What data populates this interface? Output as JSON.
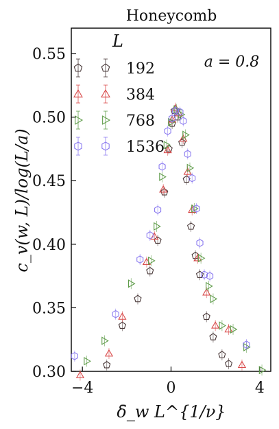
{
  "chart_data": {
    "type": "scatter",
    "title": "Honeycomb",
    "xlabel": "δ̄_w L^{1/ν}",
    "ylabel": "c_v(w, L)/log(L/a)",
    "xlim": [
      -4.5,
      4.5
    ],
    "ylim": [
      0.3,
      0.57
    ],
    "xticks": [
      -4,
      0,
      4
    ],
    "xtick_labels": [
      "−4",
      "0",
      "4"
    ],
    "yticks": [
      0.3,
      0.35,
      0.4,
      0.45,
      0.5,
      0.55
    ],
    "ytick_labels": [
      "0.30",
      "0.35",
      "0.40",
      "0.45",
      "0.50",
      "0.55"
    ],
    "legend_title": "L",
    "legend_position": "top-left",
    "annotation": "a = 0.8",
    "grid": false,
    "series": [
      {
        "name": "192",
        "color": "#4a3a3a",
        "marker": "pentagon",
        "points": [
          [
            -2.9,
            0.305
          ],
          [
            -2.2,
            0.336
          ],
          [
            -1.5,
            0.357
          ],
          [
            -0.95,
            0.379
          ],
          [
            -0.6,
            0.403
          ],
          [
            -0.3,
            0.441
          ],
          [
            -0.1,
            0.475
          ],
          [
            0.05,
            0.495
          ],
          [
            0.15,
            0.505
          ],
          [
            0.3,
            0.5
          ],
          [
            0.5,
            0.48
          ],
          [
            0.7,
            0.451
          ],
          [
            0.9,
            0.414
          ],
          [
            1.1,
            0.391
          ],
          [
            1.3,
            0.376
          ],
          [
            1.6,
            0.343
          ],
          [
            1.9,
            0.327
          ],
          [
            2.3,
            0.313
          ],
          [
            2.6,
            0.306
          ]
        ]
      },
      {
        "name": "384",
        "color": "#d94a4a",
        "marker": "triangle-up",
        "points": [
          [
            -4.1,
            0.297
          ],
          [
            -2.8,
            0.314
          ],
          [
            -2.2,
            0.343
          ],
          [
            -1.1,
            0.386
          ],
          [
            -0.75,
            0.406
          ],
          [
            -0.35,
            0.443
          ],
          [
            -0.15,
            0.474
          ],
          [
            0.05,
            0.498
          ],
          [
            0.2,
            0.507
          ],
          [
            0.35,
            0.503
          ],
          [
            0.55,
            0.483
          ],
          [
            0.75,
            0.457
          ],
          [
            0.95,
            0.427
          ],
          [
            1.2,
            0.389
          ],
          [
            1.6,
            0.362
          ],
          [
            2.0,
            0.336
          ],
          [
            2.6,
            0.333
          ],
          [
            3.2,
            0.305
          ]
        ]
      },
      {
        "name": "768",
        "color": "#5f9c4a",
        "marker": "triangle-right",
        "points": [
          [
            -3.8,
            0.308
          ],
          [
            -3.0,
            0.324
          ],
          [
            -1.8,
            0.369
          ],
          [
            -0.9,
            0.387
          ],
          [
            -0.65,
            0.414
          ],
          [
            -0.4,
            0.453
          ],
          [
            -0.2,
            0.478
          ],
          [
            0.0,
            0.496
          ],
          [
            0.25,
            0.506
          ],
          [
            0.45,
            0.502
          ],
          [
            0.65,
            0.486
          ],
          [
            0.85,
            0.46
          ],
          [
            1.05,
            0.428
          ],
          [
            1.35,
            0.389
          ],
          [
            1.7,
            0.367
          ],
          [
            1.9,
            0.357
          ],
          [
            2.3,
            0.336
          ],
          [
            2.8,
            0.333
          ],
          [
            3.4,
            0.319
          ],
          [
            4.1,
            0.301
          ]
        ]
      },
      {
        "name": "1536",
        "color": "#8c7cf0",
        "marker": "hexagon",
        "points": [
          [
            -4.35,
            0.312
          ],
          [
            -2.5,
            0.345
          ],
          [
            -1.4,
            0.388
          ],
          [
            -0.95,
            0.407
          ],
          [
            -0.6,
            0.427
          ],
          [
            -0.4,
            0.461
          ],
          [
            -0.15,
            0.489
          ],
          [
            0.05,
            0.499
          ],
          [
            0.2,
            0.505
          ],
          [
            0.4,
            0.504
          ],
          [
            0.55,
            0.497
          ],
          [
            0.75,
            0.471
          ],
          [
            0.95,
            0.452
          ],
          [
            1.15,
            0.428
          ],
          [
            1.3,
            0.401
          ],
          [
            1.5,
            0.376
          ],
          [
            1.75,
            0.375
          ],
          [
            3.4,
            0.321
          ]
        ]
      }
    ]
  }
}
